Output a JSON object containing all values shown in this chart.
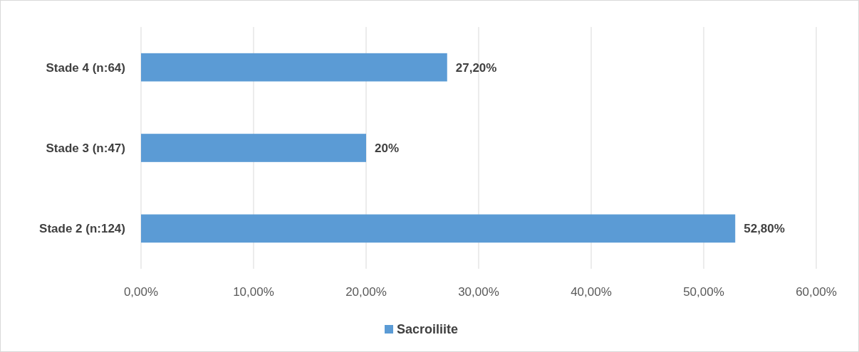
{
  "chart_data": {
    "type": "bar",
    "orientation": "horizontal",
    "categories": [
      "Stade 4 (n:64)",
      "Stade 3 (n:47)",
      "Stade 2 (n:124)"
    ],
    "series": [
      {
        "name": "Sacroiliite",
        "color": "#5b9bd5",
        "values": [
          27.2,
          20,
          52.8
        ],
        "value_labels": [
          "27,20%",
          "20%",
          "52,80%"
        ]
      }
    ],
    "xlim": [
      0,
      60
    ],
    "xticks": [
      {
        "value": 0,
        "label": "0,00%"
      },
      {
        "value": 10,
        "label": "10,00%"
      },
      {
        "value": 20,
        "label": "20,00%"
      },
      {
        "value": 30,
        "label": "30,00%"
      },
      {
        "value": 40,
        "label": "40,00%"
      },
      {
        "value": 50,
        "label": "50,00%"
      },
      {
        "value": 60,
        "label": "60,00%"
      }
    ],
    "grid": "x",
    "legend": "bottom"
  }
}
